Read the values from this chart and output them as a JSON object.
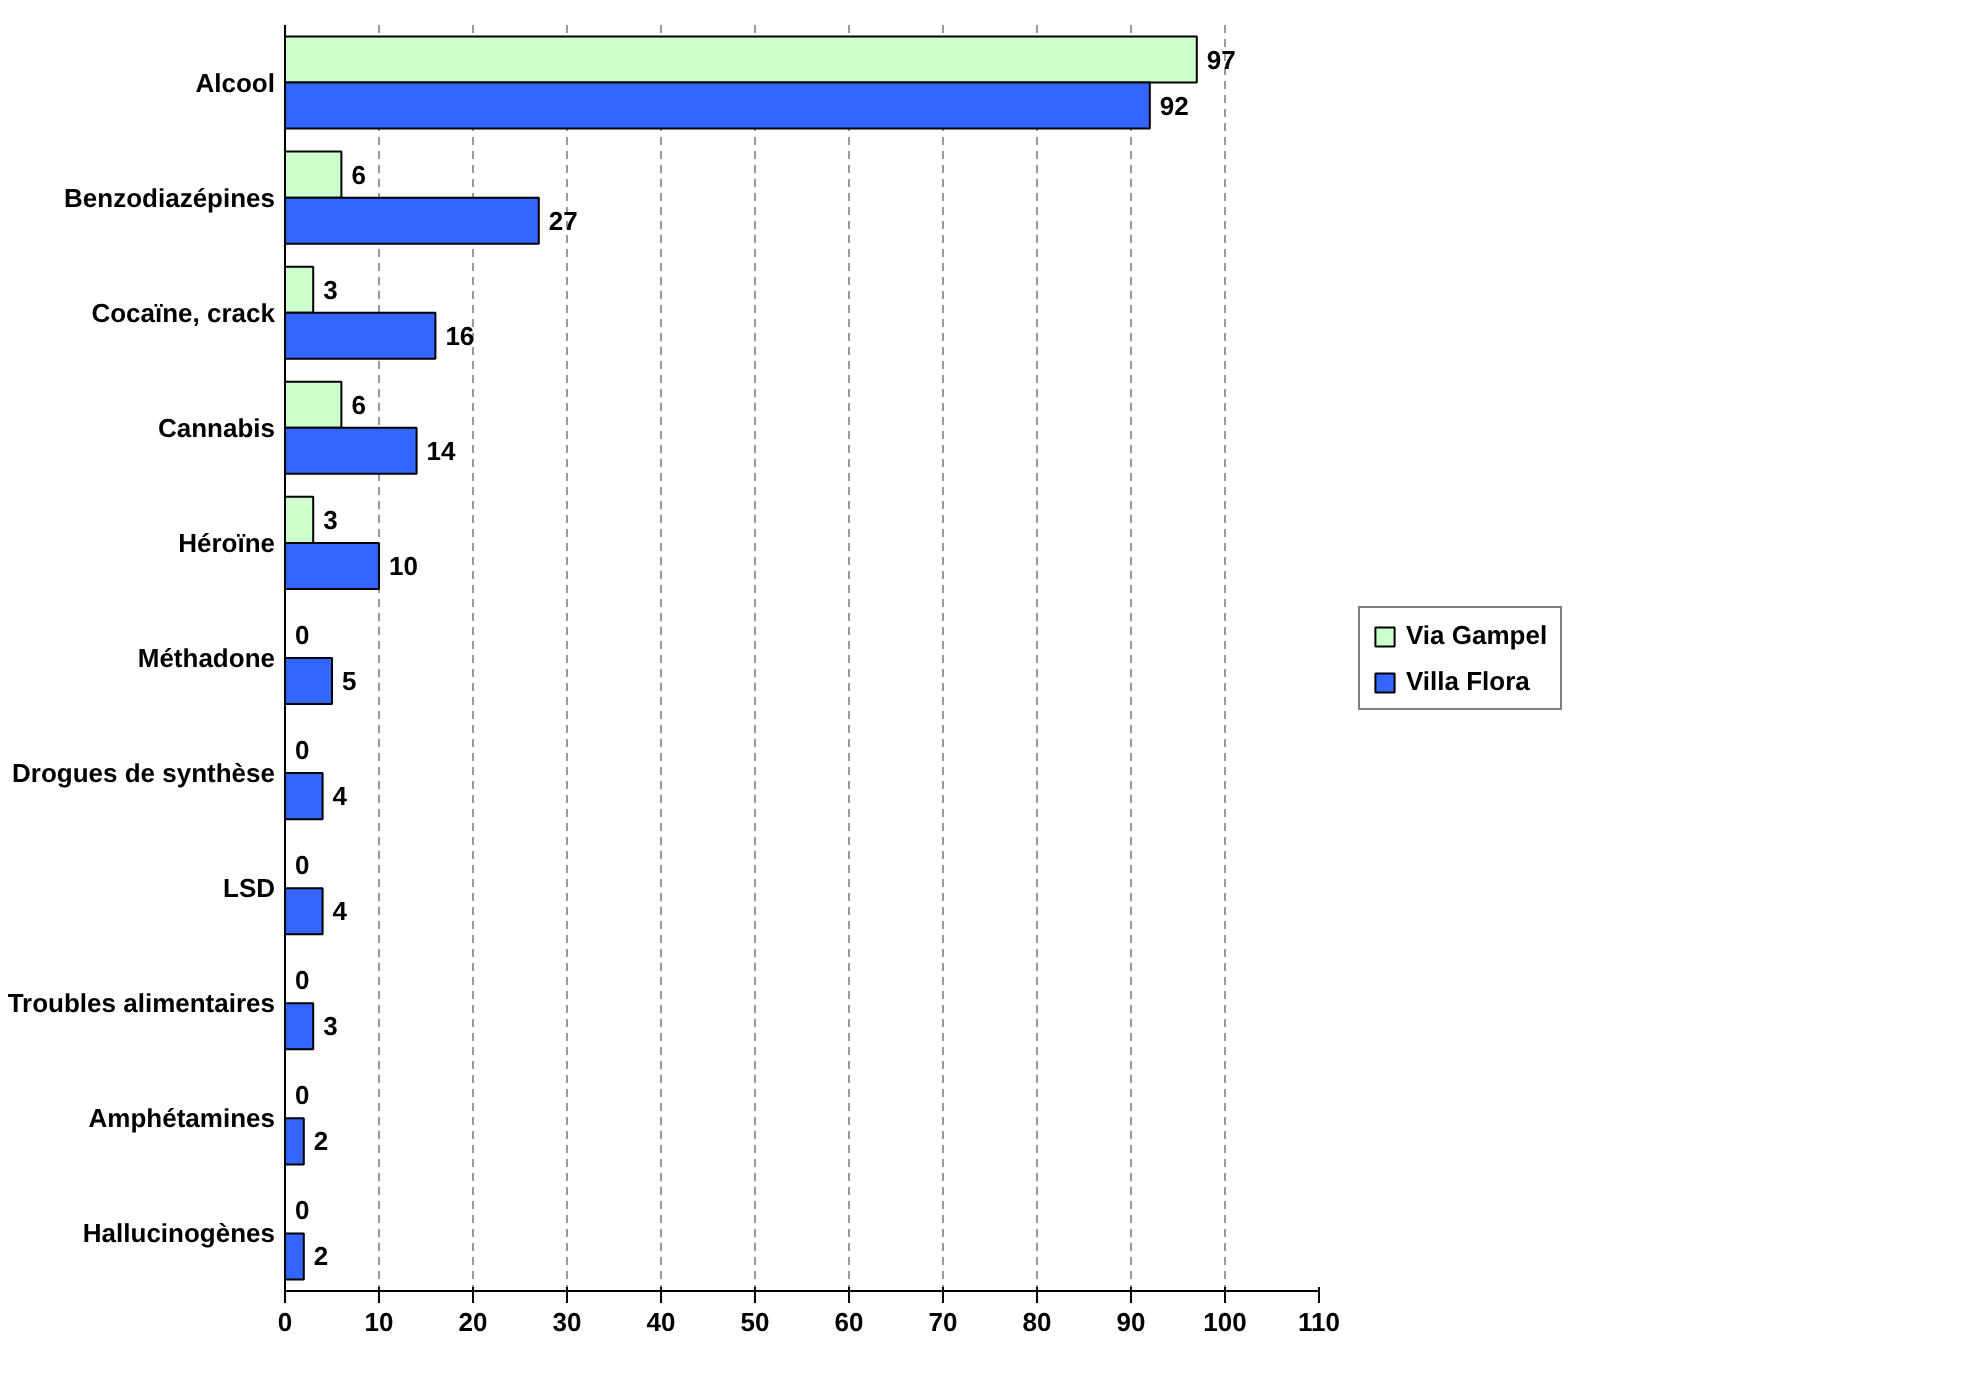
{
  "chart_data": {
    "type": "bar",
    "orientation": "horizontal",
    "categories": [
      "Alcool",
      "Benzodiazépines",
      "Cocaïne, crack",
      "Cannabis",
      "Héroïne",
      "Méthadone",
      "Drogues de synthèse",
      "LSD",
      "Troubles alimentaires",
      "Amphétamines",
      "Hallucinogènes"
    ],
    "series": [
      {
        "name": "Via Gampel",
        "color": "#ccffcc",
        "values": [
          97,
          6,
          3,
          6,
          3,
          0,
          0,
          0,
          0,
          0,
          0
        ]
      },
      {
        "name": "Villa Flora",
        "color": "#3366ff",
        "values": [
          92,
          27,
          16,
          14,
          10,
          5,
          4,
          4,
          3,
          2,
          2
        ]
      }
    ],
    "xlim": [
      0,
      110
    ],
    "xticks": [
      0,
      10,
      20,
      30,
      40,
      50,
      60,
      70,
      80,
      90,
      100,
      110
    ],
    "grid": "x",
    "legend": "right",
    "data_labels": true
  }
}
